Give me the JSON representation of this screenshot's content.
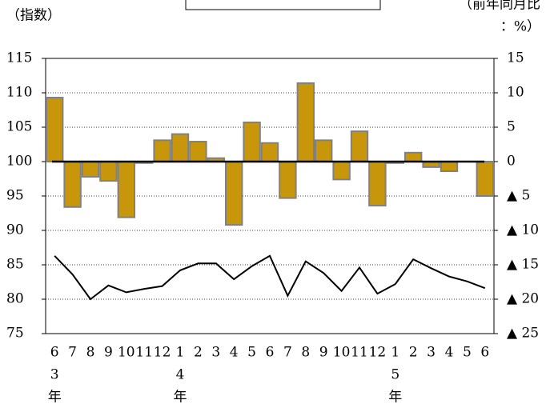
{
  "chart_data": {
    "type": "combo",
    "y_label": "（指数）",
    "y2_label_lines": [
      "（前年同月比",
      "：%）"
    ],
    "categories": [
      "6",
      "7",
      "8",
      "9",
      "10",
      "11",
      "12",
      "1",
      "2",
      "3",
      "4",
      "5",
      "6",
      "7",
      "8",
      "9",
      "10",
      "11",
      "12",
      "1",
      "2",
      "3",
      "4",
      "5",
      "6"
    ],
    "year_labels": [
      {
        "category": 0,
        "number": "3",
        "unit": "年"
      },
      {
        "category": 7,
        "number": "4",
        "unit": "年"
      },
      {
        "category": 19,
        "number": "5",
        "unit": "年"
      }
    ],
    "series": [
      {
        "type": "bar",
        "axis": "y2",
        "color": "#c8960a",
        "edge": "#808080",
        "values": [
          9.3,
          -6.6,
          -2.2,
          -2.8,
          -8.1,
          -0.2,
          3.1,
          4.0,
          2.9,
          0.5,
          -9.2,
          5.7,
          2.7,
          -5.3,
          11.4,
          3.1,
          -2.6,
          4.4,
          -6.4,
          -0.2,
          1.3,
          -0.8,
          -1.4,
          0,
          -5.0
        ]
      },
      {
        "type": "line",
        "axis": "y",
        "color": "#000000",
        "values": [
          86.3,
          83.6,
          80.0,
          82.0,
          81.0,
          81.5,
          81.9,
          84.2,
          85.2,
          85.2,
          82.9,
          84.8,
          86.3,
          80.5,
          85.5,
          83.8,
          81.2,
          84.6,
          80.8,
          82.2,
          85.8,
          84.5,
          83.3,
          82.6,
          81.6
        ]
      }
    ],
    "ylim": [
      75,
      115
    ],
    "yticks": [
      75,
      80,
      85,
      90,
      95,
      100,
      105,
      110,
      115
    ],
    "y2lim": [
      -25,
      15
    ],
    "y2ticks": [
      15,
      10,
      5,
      0,
      {
        "value": -5,
        "label": "▲ 5"
      },
      {
        "value": -10,
        "label": "▲ 10"
      },
      {
        "value": -15,
        "label": "▲ 15"
      },
      {
        "value": -20,
        "label": "▲ 20"
      },
      {
        "value": -25,
        "label": "▲ 25"
      }
    ],
    "grid": true
  }
}
